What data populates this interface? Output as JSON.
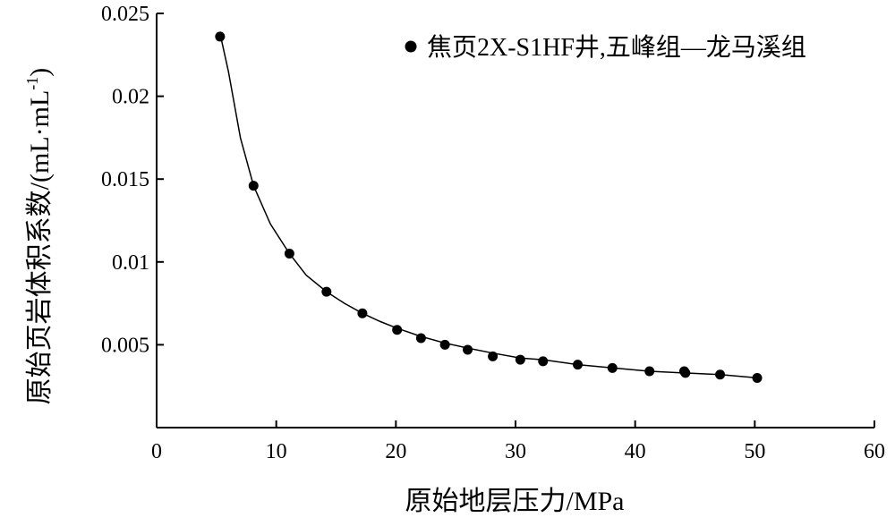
{
  "chart_data": {
    "type": "scatter",
    "title": "",
    "xlabel": "原始地层压力/MPa",
    "ylabel": "原始页岩体积系数/(mL·mL",
    "ylabel_sup": "-1",
    "ylabel_close": ")",
    "xlim": [
      0,
      60
    ],
    "ylim": [
      0,
      0.025
    ],
    "x_ticks": [
      0,
      10,
      20,
      30,
      40,
      50,
      60
    ],
    "x_tick_labels": [
      "0",
      "10",
      "20",
      "30",
      "40",
      "50",
      "60"
    ],
    "y_ticks": [
      0.005,
      0.01,
      0.015,
      0.02,
      0.025
    ],
    "y_tick_labels": [
      "0.005",
      "0.01",
      "0.015",
      "0.02",
      "0.025"
    ],
    "grid": false,
    "legend_position": "top-right",
    "series": [
      {
        "name": "焦页2X-S1HF井,五峰组—龙马溪组",
        "marker": "circle",
        "color": "#000000",
        "points": [
          [
            5.3,
            0.0236
          ],
          [
            8.1,
            0.0146
          ],
          [
            11.1,
            0.0105
          ],
          [
            14.2,
            0.0082
          ],
          [
            17.2,
            0.0069
          ],
          [
            20.1,
            0.0059
          ],
          [
            22.1,
            0.0054
          ],
          [
            24.1,
            0.005
          ],
          [
            26.0,
            0.0047
          ],
          [
            28.1,
            0.0043
          ],
          [
            30.4,
            0.0041
          ],
          [
            32.3,
            0.004
          ],
          [
            35.2,
            0.0038
          ],
          [
            38.1,
            0.0036
          ],
          [
            41.2,
            0.0034
          ],
          [
            44.1,
            0.0034
          ],
          [
            44.2,
            0.0033
          ],
          [
            47.1,
            0.0032
          ],
          [
            50.2,
            0.003
          ]
        ]
      }
    ],
    "fit_curve": {
      "color": "#000000",
      "points": [
        [
          5.3,
          0.0238
        ],
        [
          6.0,
          0.0215
        ],
        [
          7.0,
          0.0175
        ],
        [
          8.1,
          0.0146
        ],
        [
          9.5,
          0.0123
        ],
        [
          11.1,
          0.0105
        ],
        [
          12.5,
          0.0092
        ],
        [
          14.2,
          0.0082
        ],
        [
          15.7,
          0.0075
        ],
        [
          17.2,
          0.0069
        ],
        [
          18.7,
          0.0064
        ],
        [
          20.1,
          0.006
        ],
        [
          22.1,
          0.0055
        ],
        [
          24.1,
          0.0051
        ],
        [
          26.0,
          0.0048
        ],
        [
          28.1,
          0.0045
        ],
        [
          30.4,
          0.0042
        ],
        [
          32.3,
          0.0041
        ],
        [
          35.2,
          0.0038
        ],
        [
          38.1,
          0.0036
        ],
        [
          41.2,
          0.0034
        ],
        [
          44.1,
          0.0033
        ],
        [
          47.1,
          0.0032
        ],
        [
          50.2,
          0.003
        ]
      ]
    }
  }
}
